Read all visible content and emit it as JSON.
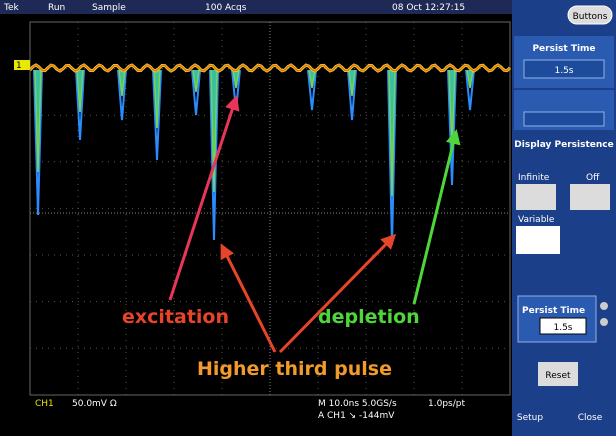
{
  "status_bar": {
    "mode": "Tek",
    "state": "Run",
    "acquisition": "Sample",
    "count": "100 Acqs",
    "datetime": "08 Oct 12:27:15"
  },
  "channel_marker": "1",
  "panel": {
    "buttons": "Buttons",
    "persist_time_title": "Persist Time",
    "persist_time_value": "1.5s",
    "display_persistence": "Display Persistence",
    "infinite": "Infinite",
    "off": "Off",
    "variable": "Variable",
    "persist_time_label": "Persist Time",
    "persist_time_entry": "1.5s",
    "reset": "Reset",
    "setup": "Setup",
    "close": "Close"
  },
  "annotations": {
    "excitation": "excitation",
    "depletion": "depletion",
    "third_pulse": "Higher third pulse"
  },
  "readout": {
    "channel": "CH1",
    "scale": "50.0mV Ω",
    "timebase": "M 10.0ns 5.0GS/s",
    "resolution": "1.0ps/pt",
    "trigger": "A CH1 ↘ -144mV"
  }
}
